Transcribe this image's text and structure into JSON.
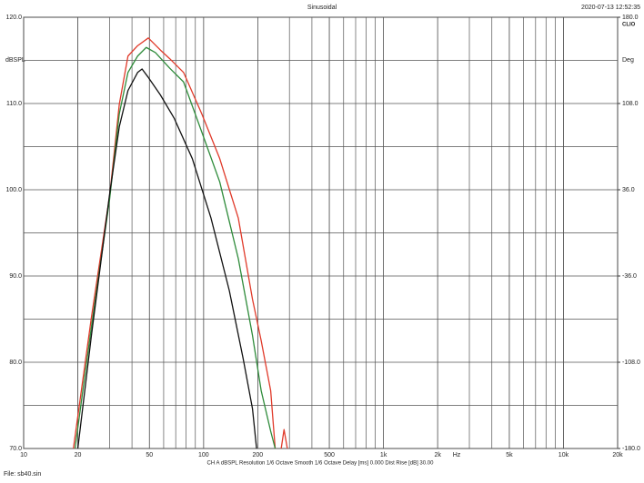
{
  "chart_data": {
    "type": "line",
    "title": "Sinusoidal",
    "timestamp": "2020-07-13 12:52:35",
    "brand": "CLIO",
    "ylabel": "dBSPL",
    "y2label": "Deg",
    "x_unit": "Hz",
    "footer": "CH A   dBSPL   Resolution 1/6 Octave   Smooth 1/6 Octave   Delay [ms] 0.000   Dist Rise [dB] 30.00",
    "file": "File: sb40.sin",
    "log_x": true,
    "grid": true,
    "xlim": [
      10,
      20000
    ],
    "xticks": [
      10,
      20,
      50,
      100,
      200,
      500,
      {
        "value": 1000,
        "label": "1k"
      },
      {
        "value": 2000,
        "label": "2k"
      },
      {
        "value": 5000,
        "label": "5k"
      },
      {
        "value": 10000,
        "label": "10k"
      },
      {
        "value": 20000,
        "label": "20k"
      }
    ],
    "ylim": [
      70,
      120
    ],
    "yticks": [
      {
        "value": 70,
        "label": "70.0"
      },
      {
        "value": 80,
        "label": "80.0"
      },
      {
        "value": 90,
        "label": "90.0"
      },
      {
        "value": 100,
        "label": "100.0"
      },
      {
        "value": 110,
        "label": "110.0"
      },
      {
        "value": 120,
        "label": "120.0"
      }
    ],
    "y2lim": [
      -180,
      180
    ],
    "y2ticks": [
      {
        "value": -180,
        "label": "-180.0"
      },
      {
        "value": -108,
        "label": "-108.0"
      },
      {
        "value": -36,
        "label": "-36.0"
      },
      {
        "value": 36,
        "label": "36.0"
      },
      {
        "value": 108,
        "label": "108.0"
      },
      {
        "value": 180,
        "label": "180.0"
      }
    ],
    "series": [
      {
        "color": "#e03a2a",
        "x": [
          18.9,
          23.8,
          30.1,
          34,
          38,
          43,
          49.3,
          57.5,
          64.8,
          77.4,
          97.7,
          123,
          156,
          187,
          209,
          236,
          250,
          260,
          270,
          280,
          292
        ],
        "values": [
          70,
          85.2,
          99.4,
          109.9,
          115.5,
          116.7,
          117.6,
          116.2,
          115.2,
          113.6,
          108.8,
          103.6,
          96.7,
          87.3,
          82.5,
          76.7,
          70,
          null,
          70,
          72.2,
          70
        ]
      },
      {
        "color": "#2e8b3a",
        "x": [
          19.3,
          23.8,
          30,
          34,
          38,
          43,
          48,
          54,
          64.8,
          77.4,
          97.7,
          123,
          156,
          187,
          209,
          236,
          250
        ],
        "values": [
          70,
          84.1,
          98.8,
          108.8,
          113.6,
          115.5,
          116.5,
          115.9,
          114.1,
          112.5,
          106.7,
          100.9,
          92,
          83.1,
          76.7,
          72,
          70
        ]
      },
      {
        "color": "#111111",
        "x": [
          20,
          23.8,
          30,
          34,
          38,
          43,
          45.5,
          49,
          57.5,
          68.6,
          86.6,
          110,
          139,
          166,
          187,
          197
        ],
        "values": [
          70,
          83.1,
          99.4,
          107.3,
          111.5,
          113.6,
          114,
          113.1,
          111,
          108.3,
          103.6,
          96.7,
          88.3,
          80.4,
          74.6,
          70
        ]
      }
    ]
  }
}
